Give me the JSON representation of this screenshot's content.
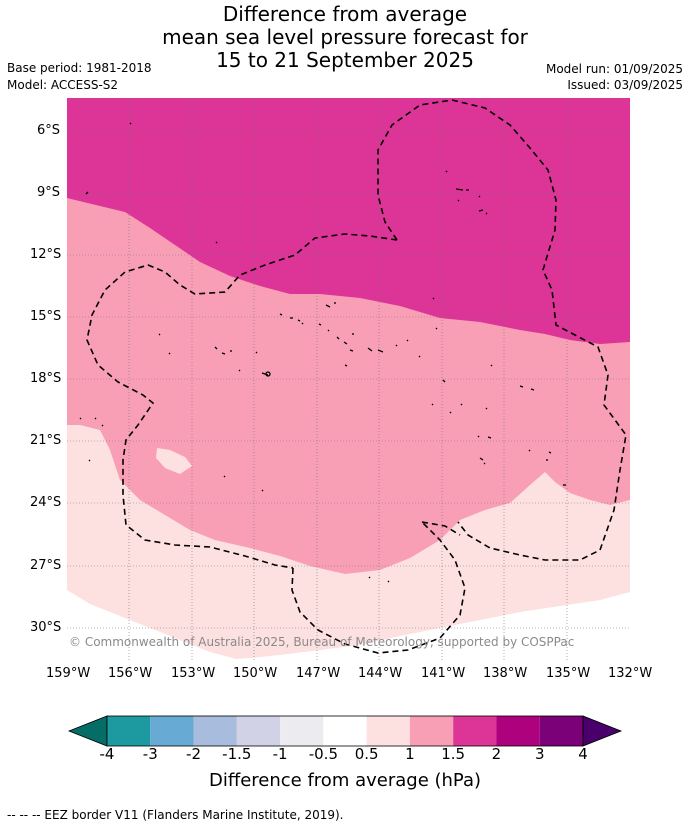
{
  "title_lines": [
    "Difference from average",
    "mean sea level pressure forecast for",
    "15 to 21 September 2025"
  ],
  "base_period": "Base period: 1981-2018",
  "model": "Model: ACCESS-S2",
  "model_run": "Model run: 01/09/2025",
  "issued": "Issued: 03/09/2025",
  "lat_labels": [
    "6°S",
    "9°S",
    "12°S",
    "15°S",
    "18°S",
    "21°S",
    "24°S",
    "27°S",
    "30°S"
  ],
  "lon_labels": [
    "159°W",
    "156°W",
    "153°W",
    "150°W",
    "147°W",
    "144°W",
    "141°W",
    "138°W",
    "135°W",
    "132°W"
  ],
  "copyright": "© Commonwealth of Australia 2025, Bureau of Meteorology, supported by COSPPac",
  "colorbar": {
    "ticks": [
      "-4",
      "-3",
      "-2",
      "-1.5",
      "-1",
      "-0.5",
      "0.5",
      "1",
      "1.5",
      "2",
      "3",
      "4"
    ],
    "colors": [
      "#1d9aa0",
      "#67aad4",
      "#a8bcdd",
      "#d1d2e6",
      "#ecebef",
      "#ffffff",
      "#fde0e0",
      "#f89fb6",
      "#dd3497",
      "#ae017e",
      "#7a0177"
    ],
    "under_color": "#056c66",
    "over_color": "#49006a",
    "title": "Difference from average (hPa)"
  },
  "footer": "--  --  -- EEZ border V11 (Flanders Marine Institute, 2019)."
}
